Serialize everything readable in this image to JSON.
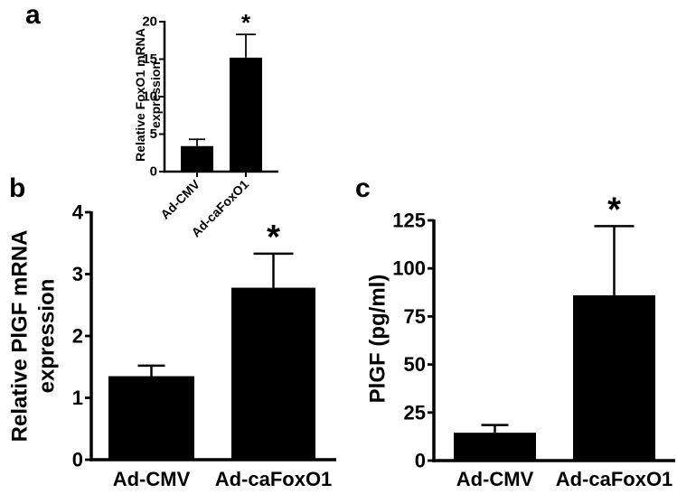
{
  "figure": {
    "panels": [
      "a",
      "b",
      "c"
    ]
  },
  "chart_data": [
    {
      "panel": "a",
      "type": "bar",
      "title": "",
      "xlabel": "",
      "ylabel": "Relative FoxO1 mRNA expression",
      "ylabel_lines": [
        "Relative FoxO1 mRNA",
        "expression"
      ],
      "categories": [
        "Ad-CMV",
        "Ad-caFoxO1"
      ],
      "values": [
        3.4,
        15.2
      ],
      "error_upper": [
        4.3,
        18.3
      ],
      "significance": [
        "",
        "*"
      ],
      "ylim": [
        0,
        20
      ],
      "yticks": [
        0,
        5,
        10,
        15,
        20
      ],
      "xtick_rotation": -45,
      "grid": false,
      "bar_color": "#000000"
    },
    {
      "panel": "b",
      "type": "bar",
      "title": "",
      "xlabel": "",
      "ylabel": "Relative PlGF mRNA expression",
      "ylabel_lines": [
        "Relative PlGF mRNA",
        "expression"
      ],
      "categories": [
        "Ad-CMV",
        "Ad-caFoxO1"
      ],
      "values": [
        1.35,
        2.78
      ],
      "error_upper": [
        1.52,
        3.33
      ],
      "significance": [
        "",
        "*"
      ],
      "ylim": [
        0,
        4
      ],
      "yticks": [
        0,
        1,
        2,
        3,
        4
      ],
      "grid": false,
      "bar_color": "#000000"
    },
    {
      "panel": "c",
      "type": "bar",
      "title": "",
      "xlabel": "",
      "ylabel": "PlGF (pg/ml)",
      "ylabel_lines": [
        "PlGF (pg/ml)"
      ],
      "categories": [
        "Ad-CMV",
        "Ad-caFoxO1"
      ],
      "values": [
        14.5,
        86
      ],
      "error_upper": [
        18.5,
        122
      ],
      "significance": [
        "",
        "*"
      ],
      "ylim": [
        0,
        125
      ],
      "yticks": [
        0,
        25,
        50,
        75,
        100,
        125
      ],
      "grid": false,
      "bar_color": "#000000"
    }
  ]
}
